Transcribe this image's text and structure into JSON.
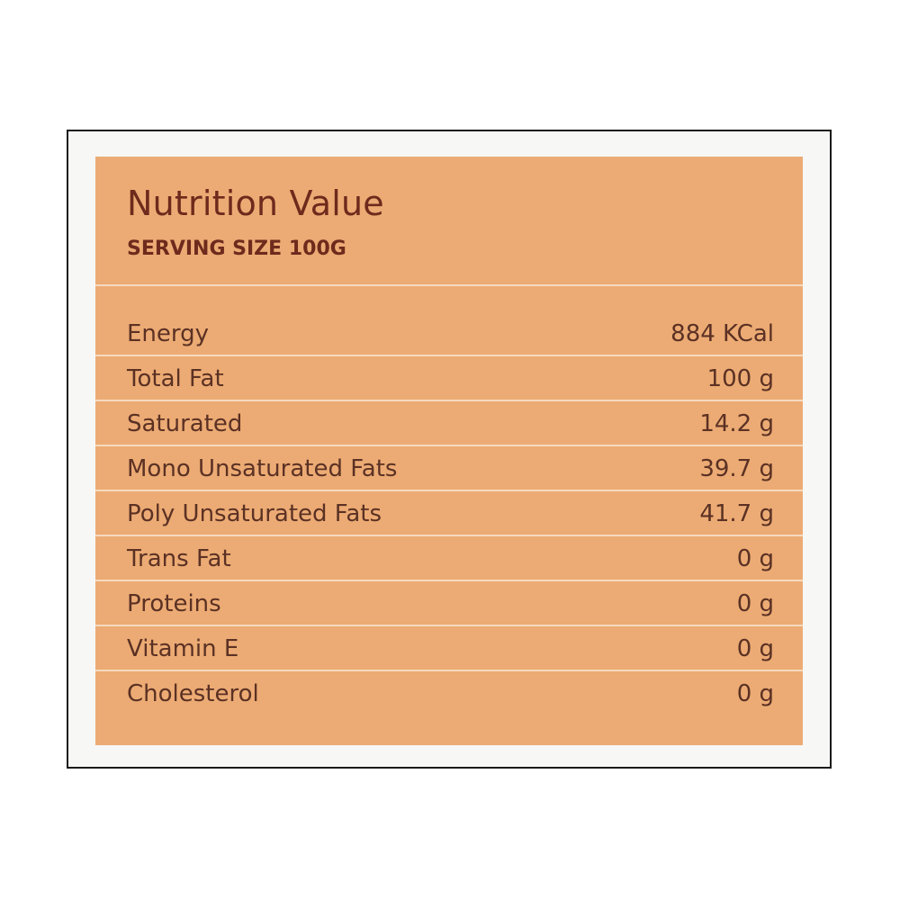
{
  "label": {
    "title": "Nutrition Value",
    "serving_size": "SERVING SIZE 100G",
    "rows": [
      {
        "name": "Energy",
        "value": "884 KCal"
      },
      {
        "name": "Total Fat",
        "value": "100 g"
      },
      {
        "name": "Saturated",
        "value": "14.2 g"
      },
      {
        "name": "Mono Unsaturated Fats",
        "value": "39.7 g"
      },
      {
        "name": "Poly Unsaturated Fats",
        "value": "41.7 g"
      },
      {
        "name": "Trans Fat",
        "value": "0 g"
      },
      {
        "name": "Proteins",
        "value": "0 g"
      },
      {
        "name": "Vitamin E",
        "value": "0 g"
      },
      {
        "name": "Cholesterol",
        "value": "0 g"
      }
    ]
  },
  "colors": {
    "panel": "#ecab74",
    "text_dark": "#6e2a1c",
    "text_body": "#5b3124",
    "divider": "#f6d9c0",
    "frame_border": "#1a1a1a"
  }
}
